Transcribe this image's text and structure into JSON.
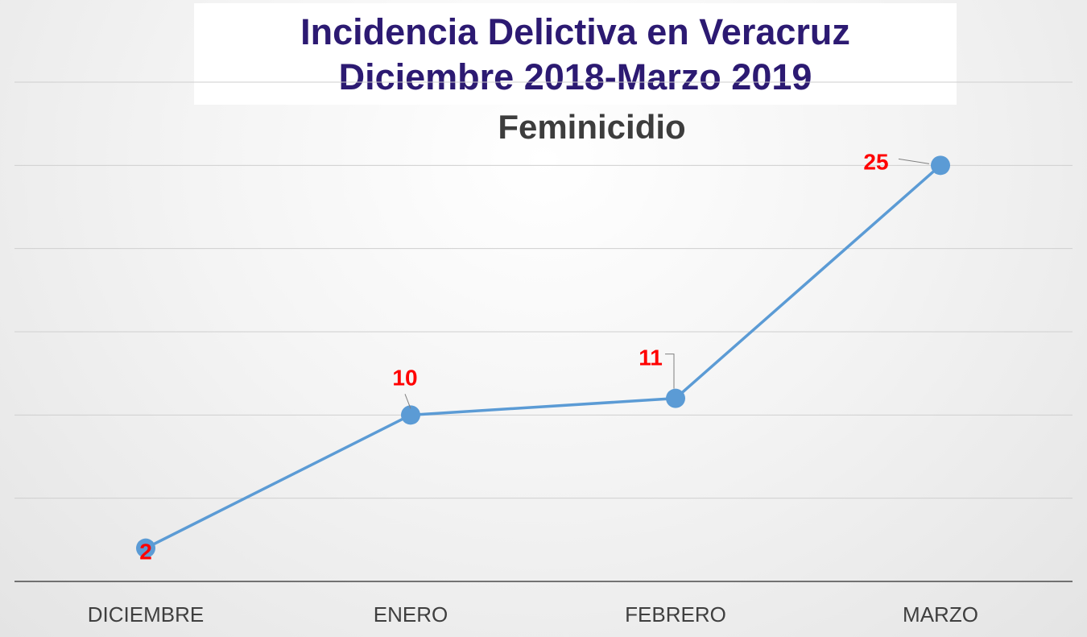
{
  "chart_data": {
    "type": "line",
    "title_lines": [
      "Incidencia Delictiva en Veracruz",
      "Diciembre 2018-Marzo 2019"
    ],
    "subtitle": "Feminicidio",
    "categories": [
      "DICIEMBRE",
      "ENERO",
      "FEBRERO",
      "MARZO"
    ],
    "series": [
      {
        "values": [
          2,
          10,
          11,
          25
        ]
      }
    ],
    "ylim": [
      0,
      30
    ],
    "grid": true,
    "legend": "none",
    "colors": {
      "line": "#5b9bd5",
      "marker": "#5b9bd5",
      "data_labels": "#ff0000",
      "title": "#2c1a72"
    }
  }
}
